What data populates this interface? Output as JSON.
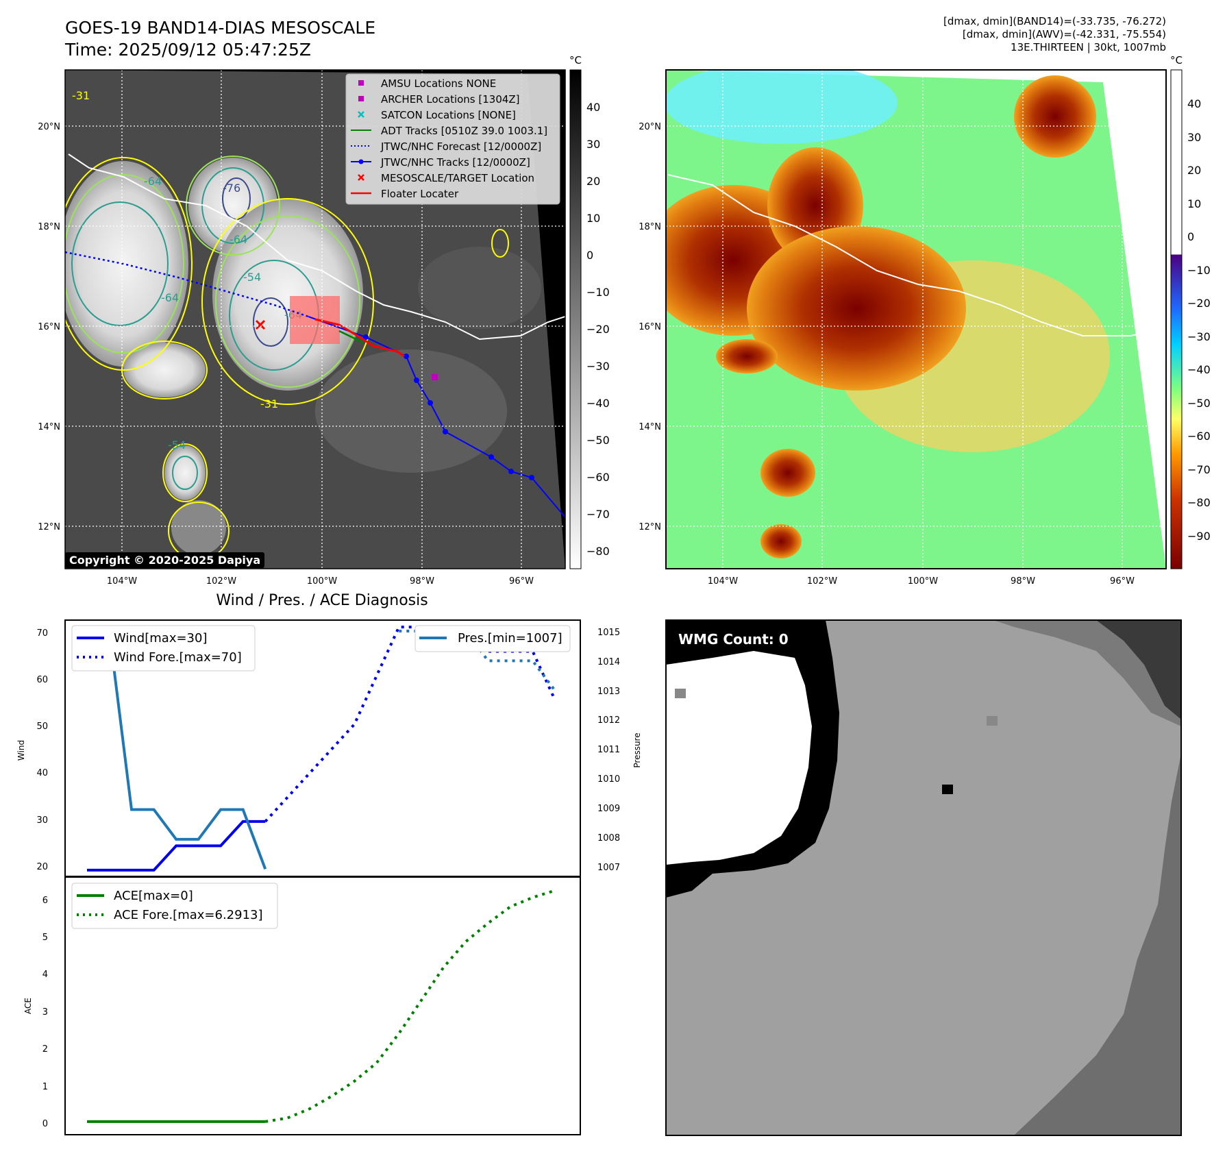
{
  "header": {
    "title_line1": "GOES-19 BAND14-DIAS MESOSCALE",
    "title_line2": "Time: 2025/09/12 05:47:25Z",
    "info_line1": "[dmax, dmin](BAND14)=(-33.735, -76.272)",
    "info_line2": "[dmax, dmin](AWV)=(-42.331, -75.554)",
    "info_line3": "13E.THIRTEEN | 30kt, 1007mb"
  },
  "map": {
    "lat_labels": [
      "20°N",
      "18°N",
      "16°N",
      "14°N",
      "12°N"
    ],
    "lon_labels": [
      "104°W",
      "102°W",
      "100°W",
      "98°W",
      "96°W"
    ],
    "copyright": "Copyright © 2020-2025 Dapiya",
    "contour_labels": [
      "-64",
      "-76",
      "-64",
      "-54",
      "-64",
      "-64",
      "-31",
      "-31",
      "-54"
    ],
    "legend": [
      {
        "label": "AMSU Locations NONE",
        "color": "#bf00bf"
      },
      {
        "label": "ARCHER Locations [1304Z]",
        "color": "#bf00bf"
      },
      {
        "label": "SATCON Locations [NONE]",
        "color": "#00bfbf"
      },
      {
        "label": "ADT Tracks [0510Z 39.0 1003.1]",
        "color": "#008000"
      },
      {
        "label": "JTWC/NHC Forecast [12/0000Z]",
        "color": "#0000ff"
      },
      {
        "label": "JTWC/NHC Tracks [12/0000Z]",
        "color": "#0000ff"
      },
      {
        "label": "MESOSCALE/TARGET Location",
        "color": "#ff0000"
      },
      {
        "label": "Floater Locater",
        "color": "#ff0000"
      }
    ]
  },
  "colorbars": {
    "unit": "°C",
    "gray_ticks": [
      "40",
      "30",
      "20",
      "10",
      "0",
      "−10",
      "−20",
      "−30",
      "−40",
      "−50",
      "−60",
      "−70",
      "−80"
    ],
    "color_ticks": [
      "40",
      "30",
      "20",
      "10",
      "0",
      "−10",
      "−20",
      "−30",
      "−40",
      "−50",
      "−60",
      "−70",
      "−80",
      "−90"
    ]
  },
  "chart_data": [
    {
      "type": "line",
      "title": "Wind / Pres. / ACE Diagnosis",
      "ylabel": "Wind",
      "ylabel_right": "Pressure",
      "ylim": [
        19,
        71
      ],
      "ylim_right": [
        1006.8,
        1015.3
      ],
      "y_ticks": [
        "70",
        "60",
        "50",
        "40",
        "30",
        "20"
      ],
      "y_ticks_right": [
        "1015",
        "1014",
        "1013",
        "1012",
        "1011",
        "1010",
        "1009",
        "1008",
        "1007"
      ],
      "x": [
        0,
        1,
        2,
        3,
        4,
        5,
        6,
        7,
        8,
        9,
        10,
        11,
        12,
        13,
        14,
        15,
        16,
        17,
        18,
        19,
        20,
        21
      ],
      "series": [
        {
          "name": "Wind[max=30]",
          "color": "#0000ee",
          "style": "solid",
          "values": [
            20,
            20,
            20,
            20,
            25,
            25,
            25,
            30,
            30,
            null,
            null,
            null,
            null,
            null,
            null,
            null,
            null,
            null,
            null,
            null,
            null,
            null
          ]
        },
        {
          "name": "Wind Fore.[max=70]",
          "color": "#0000ee",
          "style": "dotted",
          "values": [
            null,
            null,
            null,
            null,
            null,
            null,
            null,
            null,
            30,
            35,
            40,
            45,
            50,
            60,
            70,
            70,
            70,
            70,
            65,
            65,
            65,
            55
          ]
        },
        {
          "name": "Pres.[min=1007]",
          "color": "#1f77b4",
          "style": "solid",
          "axis": "right",
          "values": [
            1015,
            1015,
            1009,
            1009,
            1008,
            1008,
            1009,
            1009,
            1007,
            null,
            null,
            null,
            null,
            null,
            null,
            null,
            null,
            null,
            null,
            null,
            null,
            null
          ]
        },
        {
          "name": "",
          "color": "#1f77b4",
          "style": "dotted",
          "axis": "right",
          "values": [
            null,
            null,
            null,
            null,
            null,
            null,
            null,
            null,
            null,
            null,
            null,
            null,
            null,
            null,
            1015,
            1015,
            1015,
            1015,
            1014,
            1014,
            1014,
            1013
          ]
        }
      ]
    },
    {
      "type": "line",
      "ylabel": "ACE",
      "ylim": [
        -0.3,
        6.6
      ],
      "y_ticks": [
        "6",
        "5",
        "4",
        "3",
        "2",
        "1",
        "0"
      ],
      "x": [
        0,
        1,
        2,
        3,
        4,
        5,
        6,
        7,
        8,
        9,
        10,
        11,
        12,
        13,
        14,
        15,
        16,
        17,
        18,
        19,
        20,
        21
      ],
      "series": [
        {
          "name": "ACE[max=0]",
          "color": "#008000",
          "style": "solid",
          "values": [
            0,
            0,
            0,
            0,
            0,
            0,
            0,
            0,
            0,
            null,
            null,
            null,
            null,
            null,
            null,
            null,
            null,
            null,
            null,
            null,
            null,
            null
          ]
        },
        {
          "name": "ACE Fore.[max=6.2913]",
          "color": "#008000",
          "style": "dotted",
          "values": [
            null,
            null,
            null,
            null,
            null,
            null,
            null,
            null,
            0,
            0.1,
            0.35,
            0.7,
            1.1,
            1.6,
            2.4,
            3.3,
            4.2,
            4.9,
            5.4,
            5.85,
            6.1,
            6.29
          ]
        }
      ]
    }
  ],
  "wmg": {
    "label": "WMG Count: 0"
  }
}
